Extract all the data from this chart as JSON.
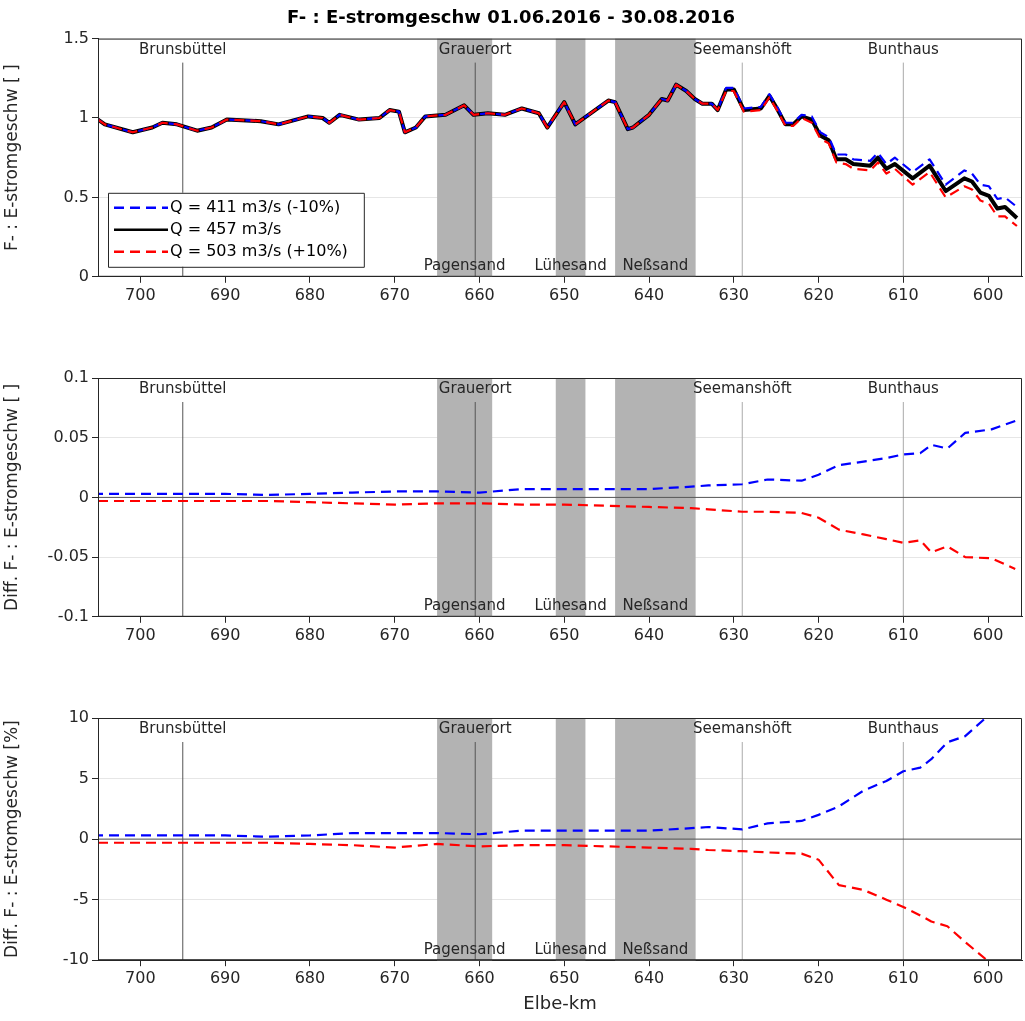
{
  "chart_data": [
    {
      "type": "line",
      "title": "F- : E-stromgeschw 01.06.2016 - 30.08.2016",
      "ylabel": "F- : E-stromgeschw [ ]",
      "x": [
        705,
        704.2,
        700.9,
        698.6,
        697.4,
        695.7,
        693.3,
        691.6,
        689.8,
        685.8,
        683.7,
        680.2,
        678.5,
        677.7,
        676.5,
        674.2,
        671.8,
        670.6,
        669.5,
        668.8,
        667.5,
        666.4,
        664,
        661.8,
        660.7,
        659,
        657,
        655,
        653,
        652,
        650,
        648.7,
        644.8,
        644,
        642.5,
        641.9,
        640,
        638.5,
        637.8,
        636.8,
        635.6,
        634.6,
        633.7,
        632.6,
        631.9,
        630.9,
        630,
        628.8,
        626.8,
        625.8,
        624.9,
        623.9,
        623,
        622,
        620.8,
        619.8,
        618.8,
        617.9,
        616.8,
        615.9,
        613.9,
        613,
        612,
        611,
        608.9,
        606.9,
        605,
        602.8,
        601.9,
        600.9,
        599.9,
        598.9,
        598,
        596.6
      ],
      "series": [
        {
          "name": "Q = 411 m3/s (-10%)",
          "color": "#0000ff",
          "line_style": "dashed",
          "values": [
            0.99,
            0.96,
            0.91,
            0.94,
            0.97,
            0.96,
            0.92,
            0.94,
            0.99,
            0.98,
            0.96,
            1.01,
            1.0,
            0.97,
            1.02,
            0.99,
            1.0,
            1.05,
            1.04,
            0.91,
            0.94,
            1.01,
            1.02,
            1.08,
            1.02,
            1.03,
            1.02,
            1.06,
            1.03,
            0.94,
            1.1,
            0.96,
            1.11,
            1.1,
            0.93,
            0.94,
            1.02,
            1.12,
            1.11,
            1.21,
            1.17,
            1.12,
            1.09,
            1.09,
            1.05,
            1.19,
            1.19,
            1.06,
            1.07,
            1.15,
            1.07,
            0.97,
            0.97,
            1.02,
            1.01,
            0.91,
            0.88,
            0.77,
            0.77,
            0.74,
            0.73,
            0.78,
            0.71,
            0.75,
            0.66,
            0.74,
            0.58,
            0.67,
            0.65,
            0.58,
            0.57,
            0.49,
            0.5,
            0.44
          ]
        },
        {
          "name": "Q = 457 m3/s",
          "color": "#000000",
          "line_style": "solid",
          "values": [
            0.99,
            0.96,
            0.91,
            0.94,
            0.97,
            0.96,
            0.92,
            0.94,
            0.99,
            0.98,
            0.96,
            1.01,
            1.0,
            0.97,
            1.02,
            0.99,
            1.0,
            1.05,
            1.04,
            0.91,
            0.94,
            1.01,
            1.02,
            1.08,
            1.02,
            1.03,
            1.02,
            1.06,
            1.03,
            0.94,
            1.1,
            0.96,
            1.11,
            1.1,
            0.93,
            0.94,
            1.02,
            1.12,
            1.11,
            1.21,
            1.17,
            1.12,
            1.09,
            1.09,
            1.05,
            1.18,
            1.18,
            1.05,
            1.06,
            1.14,
            1.06,
            0.96,
            0.96,
            1.01,
            0.99,
            0.89,
            0.86,
            0.74,
            0.74,
            0.71,
            0.7,
            0.75,
            0.68,
            0.71,
            0.62,
            0.7,
            0.54,
            0.62,
            0.6,
            0.53,
            0.51,
            0.43,
            0.44,
            0.37
          ]
        },
        {
          "name": "Q = 503 m3/s (+10%)",
          "color": "#ff0000",
          "line_style": "dashed",
          "values": [
            0.99,
            0.96,
            0.91,
            0.94,
            0.97,
            0.96,
            0.92,
            0.94,
            0.99,
            0.98,
            0.96,
            1.01,
            1.0,
            0.97,
            1.02,
            0.99,
            1.0,
            1.05,
            1.04,
            0.91,
            0.94,
            1.01,
            1.02,
            1.08,
            1.02,
            1.03,
            1.02,
            1.06,
            1.03,
            0.94,
            1.1,
            0.96,
            1.11,
            1.1,
            0.93,
            0.94,
            1.02,
            1.12,
            1.11,
            1.21,
            1.17,
            1.12,
            1.09,
            1.09,
            1.05,
            1.17,
            1.17,
            1.04,
            1.05,
            1.13,
            1.05,
            0.95,
            0.95,
            1.0,
            0.97,
            0.87,
            0.84,
            0.72,
            0.71,
            0.68,
            0.67,
            0.72,
            0.65,
            0.68,
            0.58,
            0.66,
            0.5,
            0.57,
            0.55,
            0.48,
            0.46,
            0.38,
            0.38,
            0.32
          ]
        }
      ],
      "xlim": [
        705,
        596
      ],
      "xticks": [
        700,
        690,
        680,
        670,
        660,
        650,
        640,
        630,
        620,
        610,
        600
      ],
      "ylim": [
        0,
        1.5
      ],
      "yticks": [
        0,
        0.5,
        1,
        1.5
      ],
      "ref_lines": [
        {
          "axis": "x",
          "value": 695,
          "label": "Brunsbüttel",
          "color": "#555555"
        },
        {
          "axis": "x",
          "value": 660.5,
          "label": "Grauerort",
          "color": "#555555"
        },
        {
          "axis": "x",
          "value": 629,
          "label": "Seemanshöft",
          "color": "#aaaaaa"
        },
        {
          "axis": "x",
          "value": 610,
          "label": "Bunthaus",
          "color": "#aaaaaa"
        }
      ],
      "bands": [
        {
          "axis": "x",
          "from": 665,
          "to": 658.5,
          "label": "Pagensand",
          "color": "#b3b3b3"
        },
        {
          "axis": "x",
          "from": 651,
          "to": 647.5,
          "label": "Lühesand",
          "color": "#b3b3b3"
        },
        {
          "axis": "x",
          "from": 644,
          "to": 634.5,
          "label": "Neßsand",
          "color": "#b3b3b3"
        }
      ],
      "grid": "y",
      "legend": "bottom left",
      "marker": "none"
    },
    {
      "type": "line",
      "ylabel": "Diff. F- : E-stromgeschw [ ]",
      "x": [
        705,
        700,
        695,
        690,
        685,
        680,
        675,
        670,
        665,
        660,
        655,
        650,
        645,
        640,
        635,
        633,
        629,
        626,
        622,
        620,
        617.6,
        614.7,
        612,
        610,
        608,
        606.7,
        604.8,
        602.7,
        599.6,
        596.8
      ],
      "series": [
        {
          "color": "#0000ff",
          "line_style": "dashed",
          "values": [
            0.003,
            0.003,
            0.003,
            0.003,
            0.002,
            0.003,
            0.004,
            0.005,
            0.005,
            0.004,
            0.007,
            0.007,
            0.007,
            0.007,
            0.009,
            0.01,
            0.011,
            0.015,
            0.014,
            0.019,
            0.027,
            0.03,
            0.033,
            0.036,
            0.037,
            0.044,
            0.041,
            0.054,
            0.057,
            0.064
          ]
        },
        {
          "color": "#ff0000",
          "line_style": "dashed",
          "values": [
            -0.003,
            -0.003,
            -0.003,
            -0.003,
            -0.003,
            -0.004,
            -0.005,
            -0.006,
            -0.005,
            -0.005,
            -0.006,
            -0.006,
            -0.007,
            -0.008,
            -0.009,
            -0.01,
            -0.012,
            -0.012,
            -0.013,
            -0.017,
            -0.027,
            -0.031,
            -0.035,
            -0.038,
            -0.036,
            -0.046,
            -0.041,
            -0.05,
            -0.051,
            -0.06
          ]
        }
      ],
      "xlim": [
        705,
        596
      ],
      "xticks": [
        700,
        690,
        680,
        670,
        660,
        650,
        640,
        630,
        620,
        610,
        600
      ],
      "ylim": [
        -0.1,
        0.1
      ],
      "yticks": [
        -0.1,
        -0.05,
        0,
        0.05,
        0.1
      ],
      "ref_lines": [
        {
          "axis": "x",
          "value": 695,
          "label": "Brunsbüttel",
          "color": "#555555"
        },
        {
          "axis": "x",
          "value": 660.5,
          "label": "Grauerort",
          "color": "#555555"
        },
        {
          "axis": "x",
          "value": 629,
          "label": "Seemanshöft",
          "color": "#aaaaaa"
        },
        {
          "axis": "x",
          "value": 610,
          "label": "Bunthaus",
          "color": "#aaaaaa"
        },
        {
          "axis": "y",
          "value": 0,
          "label": null,
          "color": "#555555"
        }
      ],
      "bands": [
        {
          "axis": "x",
          "from": 665,
          "to": 658.5,
          "label": "Pagensand",
          "color": "#b3b3b3"
        },
        {
          "axis": "x",
          "from": 651,
          "to": 647.5,
          "label": "Lühesand",
          "color": "#b3b3b3"
        },
        {
          "axis": "x",
          "from": 644,
          "to": 634.5,
          "label": "Neßsand",
          "color": "#b3b3b3"
        }
      ],
      "grid": "y",
      "marker": "none"
    },
    {
      "type": "line",
      "ylabel": "Diff. F- : E-stromgeschw [%]",
      "xlabel": "Elbe-km",
      "x": [
        705,
        700,
        695,
        690,
        685,
        680,
        675,
        670,
        665,
        660,
        655,
        650,
        645,
        640,
        635,
        633,
        629,
        626,
        622,
        620,
        617.6,
        614.7,
        612,
        610,
        608,
        606.7,
        604.8,
        602.7,
        600.3
      ],
      "series": [
        {
          "color": "#0000ff",
          "line_style": "dashed",
          "values": [
            0.3,
            0.3,
            0.3,
            0.3,
            0.2,
            0.3,
            0.5,
            0.5,
            0.5,
            0.4,
            0.7,
            0.7,
            0.7,
            0.7,
            0.9,
            1.0,
            0.8,
            1.3,
            1.5,
            2.0,
            2.7,
            4.0,
            4.8,
            5.6,
            5.9,
            6.6,
            8.0,
            8.5,
            10
          ]
        },
        {
          "color": "#ff0000",
          "line_style": "dashed",
          "values": [
            -0.3,
            -0.3,
            -0.3,
            -0.3,
            -0.3,
            -0.4,
            -0.5,
            -0.7,
            -0.4,
            -0.6,
            -0.5,
            -0.5,
            -0.6,
            -0.7,
            -0.8,
            -0.9,
            -1.0,
            -1.1,
            -1.2,
            -1.7,
            -3.8,
            -4.2,
            -5.0,
            -5.6,
            -6.3,
            -6.8,
            -7.2,
            -8.5,
            -9.9
          ]
        }
      ],
      "xlim": [
        705,
        596
      ],
      "xticks": [
        700,
        690,
        680,
        670,
        660,
        650,
        640,
        630,
        620,
        610,
        600
      ],
      "ylim": [
        -10,
        10
      ],
      "yticks": [
        -10,
        -5,
        0,
        5,
        10
      ],
      "ref_lines": [
        {
          "axis": "x",
          "value": 695,
          "label": "Brunsbüttel",
          "color": "#555555"
        },
        {
          "axis": "x",
          "value": 660.5,
          "label": "Grauerort",
          "color": "#555555"
        },
        {
          "axis": "x",
          "value": 629,
          "label": "Seemanshöft",
          "color": "#aaaaaa"
        },
        {
          "axis": "x",
          "value": 610,
          "label": "Bunthaus",
          "color": "#aaaaaa"
        },
        {
          "axis": "y",
          "value": 0,
          "label": null,
          "color": "#555555"
        }
      ],
      "bands": [
        {
          "axis": "x",
          "from": 665,
          "to": 658.5,
          "label": "Pagensand",
          "color": "#b3b3b3"
        },
        {
          "axis": "x",
          "from": 651,
          "to": 647.5,
          "label": "Lühesand",
          "color": "#b3b3b3"
        },
        {
          "axis": "x",
          "from": 644,
          "to": 634.5,
          "label": "Neßsand",
          "color": "#b3b3b3"
        }
      ],
      "grid": "y",
      "marker": "none"
    }
  ]
}
